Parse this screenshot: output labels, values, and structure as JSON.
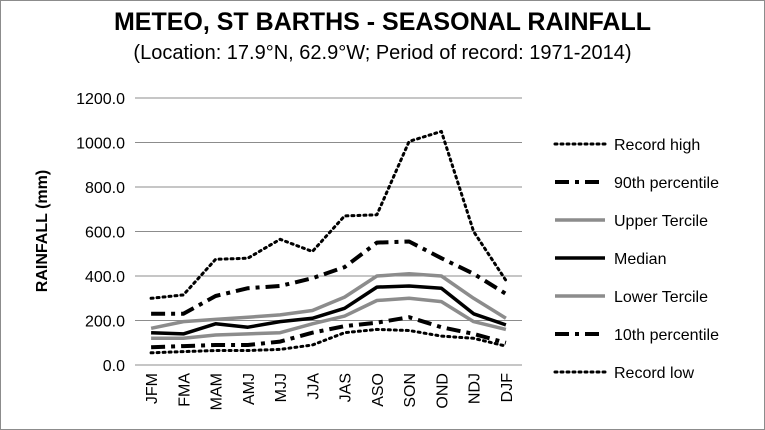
{
  "chart_data": {
    "type": "line",
    "title": "METEO, ST BARTHS - SEASONAL RAINFALL",
    "subtitle": "(Location: 17.9°N, 62.9°W; Period of record: 1971-2014)",
    "xlabel": "",
    "ylabel": "RAINFALL (mm)",
    "ylim": [
      0,
      1200
    ],
    "yticks": [
      "0.0",
      "200.0",
      "400.0",
      "600.0",
      "800.0",
      "1000.0",
      "1200.0"
    ],
    "categories": [
      "JFM",
      "FMA",
      "MAM",
      "AMJ",
      "MJJ",
      "JJA",
      "JAS",
      "ASO",
      "SON",
      "OND",
      "NDJ",
      "DJF"
    ],
    "grid": true,
    "legend_position": "right",
    "series": [
      {
        "name": "Record high",
        "style": "dotted",
        "color": "#000000",
        "values": [
          300,
          315,
          475,
          480,
          565,
          510,
          670,
          675,
          1005,
          1050,
          600,
          380
        ]
      },
      {
        "name": "90th percentile",
        "style": "dashdot",
        "color": "#000000",
        "values": [
          230,
          230,
          310,
          345,
          355,
          390,
          440,
          550,
          555,
          480,
          410,
          320
        ]
      },
      {
        "name": "Upper Tercile",
        "style": "solid",
        "color": "#8c8c8c",
        "values": [
          165,
          195,
          205,
          215,
          225,
          245,
          305,
          400,
          410,
          400,
          300,
          210
        ]
      },
      {
        "name": "Median",
        "style": "solid",
        "color": "#000000",
        "values": [
          145,
          140,
          185,
          170,
          195,
          210,
          255,
          350,
          355,
          345,
          230,
          180
        ]
      },
      {
        "name": "Lower Tercile",
        "style": "solid",
        "color": "#8c8c8c",
        "values": [
          120,
          120,
          135,
          140,
          145,
          185,
          220,
          290,
          300,
          285,
          195,
          160
        ]
      },
      {
        "name": "10th percentile",
        "style": "dashdot",
        "color": "#000000",
        "values": [
          80,
          85,
          90,
          90,
          105,
          145,
          175,
          190,
          215,
          170,
          140,
          100
        ]
      },
      {
        "name": "Record low",
        "style": "dotted",
        "color": "#000000",
        "values": [
          55,
          60,
          65,
          65,
          70,
          90,
          145,
          160,
          155,
          130,
          120,
          85
        ]
      }
    ]
  }
}
